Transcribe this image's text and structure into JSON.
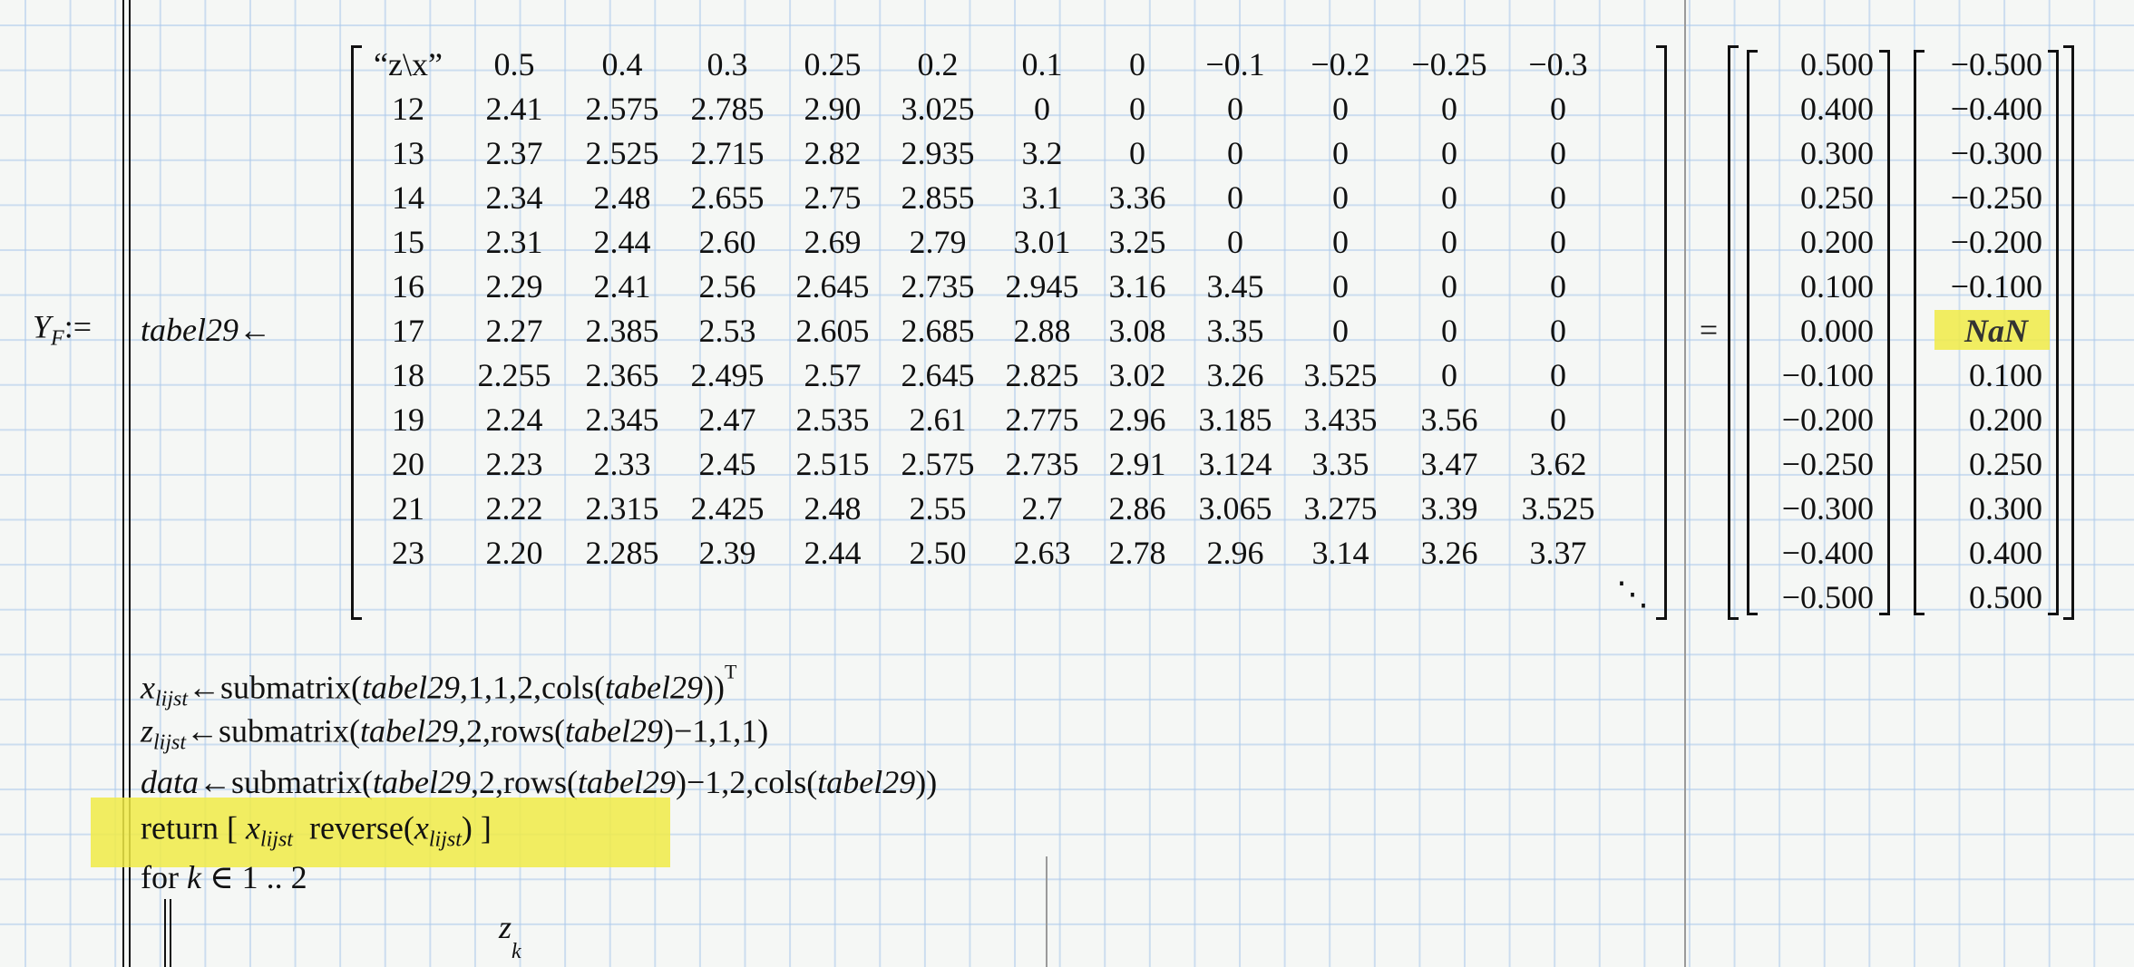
{
  "definition": {
    "variable": "Y",
    "subscript": "F",
    "assign_op": ":=",
    "local_var": "tabel29",
    "local_assign": "←",
    "equals": "="
  },
  "table": {
    "header": [
      "“z\\x”",
      "0.5",
      "0.4",
      "0.3",
      "0.25",
      "0.2",
      "0.1",
      "0",
      "−0.1",
      "−0.2",
      "−0.25",
      "−0.3"
    ],
    "rows": [
      [
        "12",
        "2.41",
        "2.575",
        "2.785",
        "2.90",
        "3.025",
        "0",
        "0",
        "0",
        "0",
        "0",
        "0"
      ],
      [
        "13",
        "2.37",
        "2.525",
        "2.715",
        "2.82",
        "2.935",
        "3.2",
        "0",
        "0",
        "0",
        "0",
        "0"
      ],
      [
        "14",
        "2.34",
        "2.48",
        "2.655",
        "2.75",
        "2.855",
        "3.1",
        "3.36",
        "0",
        "0",
        "0",
        "0"
      ],
      [
        "15",
        "2.31",
        "2.44",
        "2.60",
        "2.69",
        "2.79",
        "3.01",
        "3.25",
        "0",
        "0",
        "0",
        "0"
      ],
      [
        "16",
        "2.29",
        "2.41",
        "2.56",
        "2.645",
        "2.735",
        "2.945",
        "3.16",
        "3.45",
        "0",
        "0",
        "0"
      ],
      [
        "17",
        "2.27",
        "2.385",
        "2.53",
        "2.605",
        "2.685",
        "2.88",
        "3.08",
        "3.35",
        "0",
        "0",
        "0"
      ],
      [
        "18",
        "2.255",
        "2.365",
        "2.495",
        "2.57",
        "2.645",
        "2.825",
        "3.02",
        "3.26",
        "3.525",
        "0",
        "0"
      ],
      [
        "19",
        "2.24",
        "2.345",
        "2.47",
        "2.535",
        "2.61",
        "2.775",
        "2.96",
        "3.185",
        "3.435",
        "3.56",
        "0"
      ],
      [
        "20",
        "2.23",
        "2.33",
        "2.45",
        "2.515",
        "2.575",
        "2.735",
        "2.91",
        "3.124",
        "3.35",
        "3.47",
        "3.62"
      ],
      [
        "21",
        "2.22",
        "2.315",
        "2.425",
        "2.48",
        "2.55",
        "2.7",
        "2.86",
        "3.065",
        "3.275",
        "3.39",
        "3.525"
      ],
      [
        "23",
        "2.20",
        "2.285",
        "2.39",
        "2.44",
        "2.50",
        "2.63",
        "2.78",
        "2.96",
        "3.14",
        "3.26",
        "3.37"
      ]
    ],
    "ellipsis": "⋱"
  },
  "result": {
    "left": [
      "0.500",
      "0.400",
      "0.300",
      "0.250",
      "0.200",
      "0.100",
      "0.000",
      "−0.100",
      "−0.200",
      "−0.250",
      "−0.300",
      "−0.400",
      "−0.500"
    ],
    "right": [
      "−0.500",
      "−0.400",
      "−0.300",
      "−0.250",
      "−0.200",
      "−0.100",
      "NaN",
      "0.100",
      "0.200",
      "0.250",
      "0.300",
      "0.400",
      "0.500"
    ],
    "highlight_color": "#f0eb46"
  },
  "program": {
    "line1": {
      "var": "x",
      "sub": "lijst",
      "arrow": "←",
      "fn": "submatrix",
      "arg": "tabel29",
      "args": ",1,1,2,",
      "inner_fn": "cols",
      "transpose": "T"
    },
    "line2": {
      "var": "z",
      "sub": "lijst",
      "arrow": "←",
      "fn": "submatrix",
      "arg": "tabel29",
      "args1": ",2,",
      "inner_fn": "rows",
      "args2": "−1,1,1"
    },
    "line3": {
      "var": "data",
      "arrow": "←",
      "fn": "submatrix",
      "arg": "tabel29",
      "args1": ",2,",
      "inner_fn": "rows",
      "args2": "−1,2,",
      "inner_fn2": "cols"
    },
    "line4": {
      "keyword": "return",
      "var": "x",
      "sub": "lijst",
      "fn": "reverse"
    },
    "line5": {
      "keyword": "for",
      "var": "k",
      "op": "∈",
      "range": "1 .. 2"
    },
    "line6": {
      "var": "z",
      "sub": "k"
    }
  }
}
